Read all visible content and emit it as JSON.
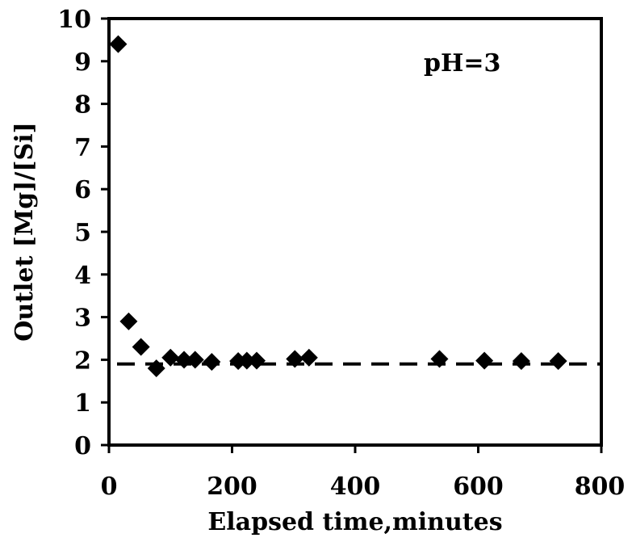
{
  "chart_data": {
    "type": "scatter",
    "xlabel": "Elapsed time,minutes",
    "ylabel": "Outlet [Mg]/[Si]",
    "xlim": [
      0,
      800
    ],
    "ylim": [
      0,
      10
    ],
    "x_ticks": [
      "0",
      "200",
      "400",
      "600",
      "800"
    ],
    "y_ticks": [
      "0",
      "1",
      "2",
      "3",
      "4",
      "5",
      "6",
      "7",
      "8",
      "9",
      "10"
    ],
    "annotation": "pH=3",
    "grid": false,
    "legend": "none",
    "marker": "diamond",
    "marker_color": "#000000",
    "reference_line": {
      "style": "dashed",
      "y": 1.9,
      "x_range": [
        0,
        800
      ]
    },
    "series": [
      {
        "points": [
          {
            "x": 15,
            "y": 9.4
          },
          {
            "x": 32,
            "y": 2.9
          },
          {
            "x": 52,
            "y": 2.3
          },
          {
            "x": 77,
            "y": 1.8
          },
          {
            "x": 100,
            "y": 2.05
          },
          {
            "x": 122,
            "y": 2.0
          },
          {
            "x": 140,
            "y": 2.0
          },
          {
            "x": 167,
            "y": 1.95
          },
          {
            "x": 210,
            "y": 1.97
          },
          {
            "x": 224,
            "y": 1.98
          },
          {
            "x": 240,
            "y": 1.98
          },
          {
            "x": 302,
            "y": 2.02
          },
          {
            "x": 325,
            "y": 2.05
          },
          {
            "x": 537,
            "y": 2.02
          },
          {
            "x": 610,
            "y": 1.98
          },
          {
            "x": 670,
            "y": 1.97
          },
          {
            "x": 730,
            "y": 1.97
          }
        ]
      }
    ]
  }
}
